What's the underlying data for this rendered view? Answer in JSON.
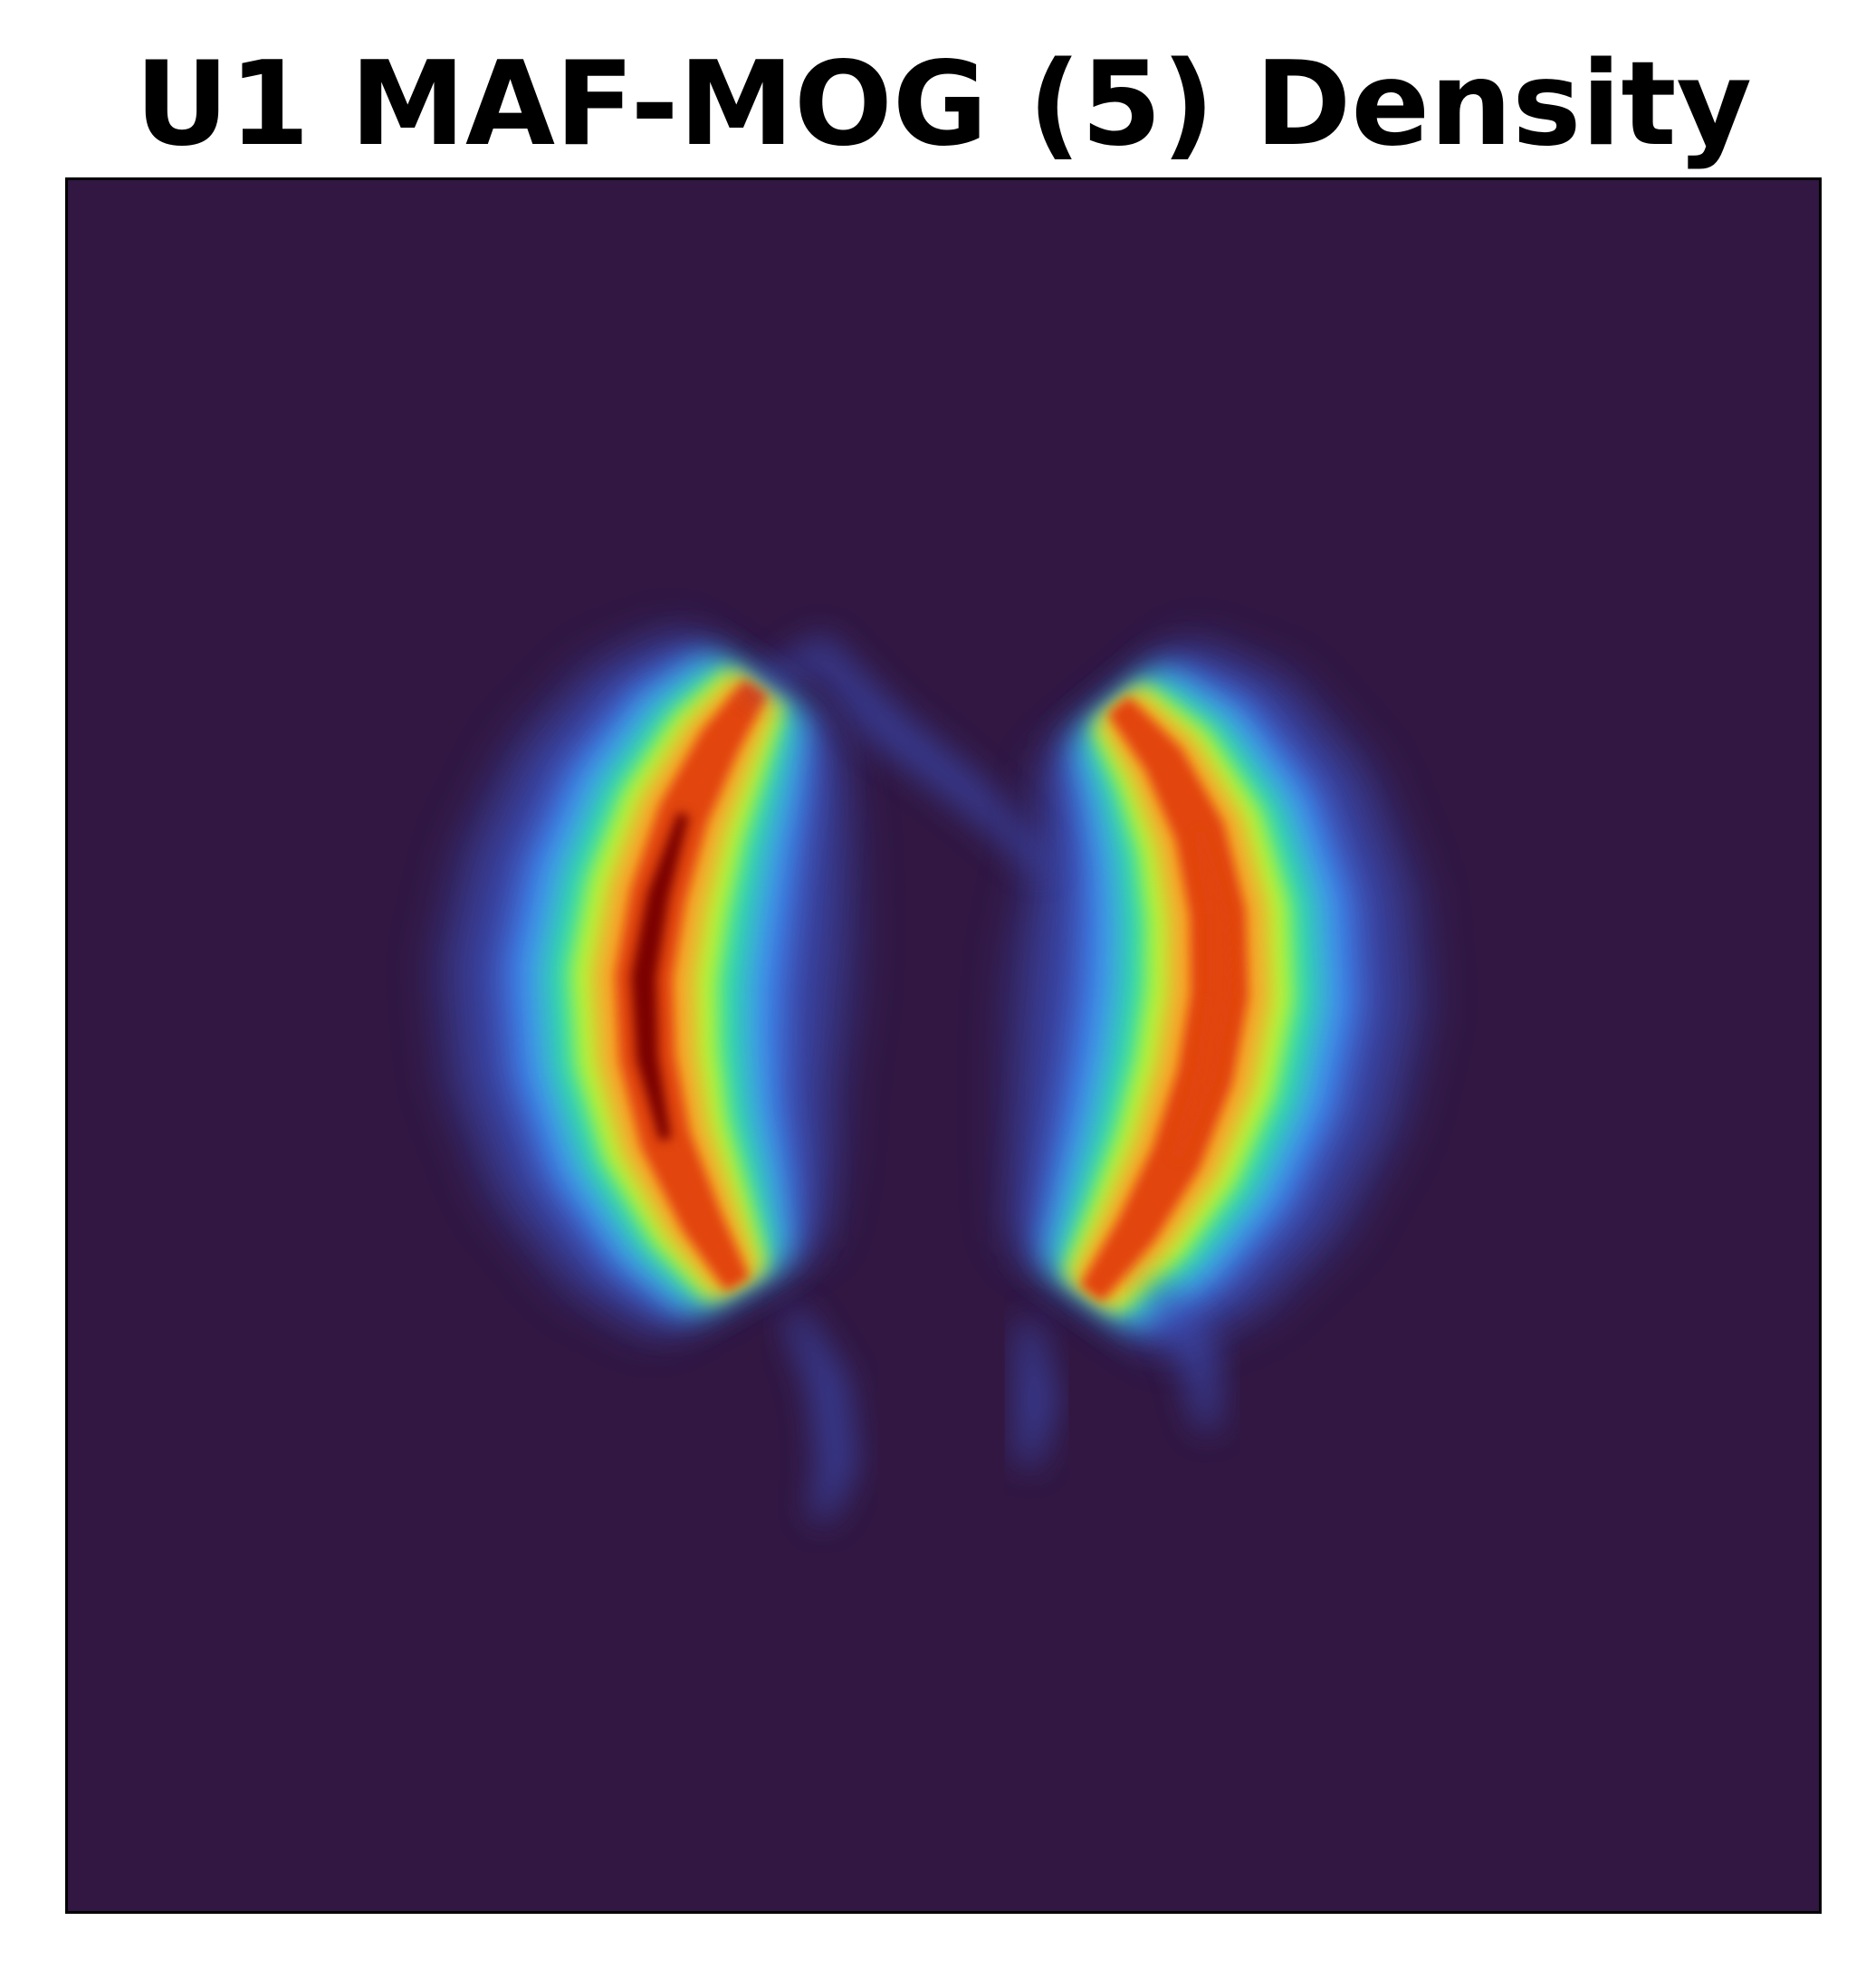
{
  "chart_data": {
    "type": "heatmap",
    "title": "U1 MAF-MOG (5) Density",
    "xlabel": "",
    "ylabel": "",
    "axes_visible": false,
    "grid": false,
    "legend": "none",
    "colormap": "turbo",
    "colors": {
      "background": "#311742",
      "low": "#3b4bb3",
      "mid_low": "#3f8ef5",
      "mid": "#2fe0a5",
      "mid_high": "#b7f536",
      "high": "#f8a52a",
      "peak": "#e2450e",
      "max": "#7a0403"
    },
    "description_of_regions": [
      {
        "name": "left-lobe",
        "shape": "crescent",
        "peak_density": "max"
      },
      {
        "name": "right-lobe",
        "shape": "crescent",
        "peak_density": "high"
      }
    ]
  }
}
